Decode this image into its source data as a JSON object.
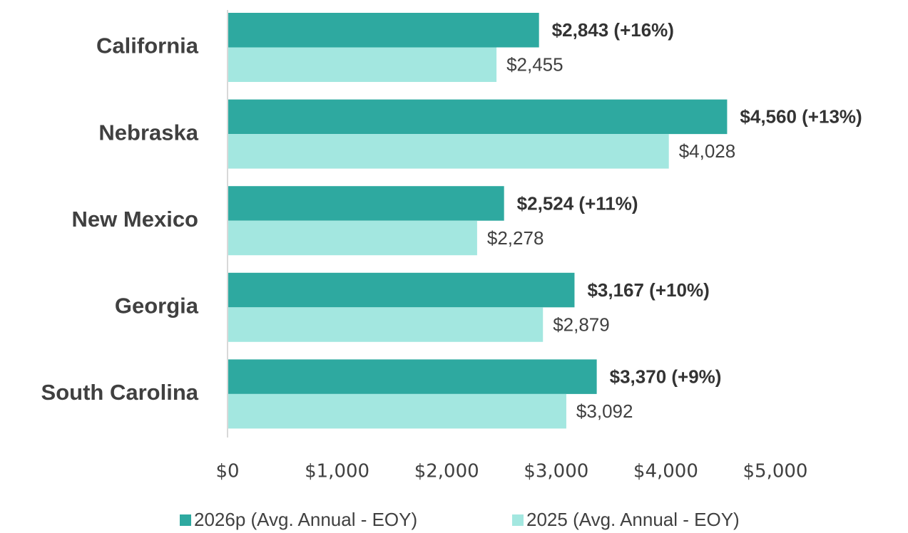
{
  "chart_data": {
    "type": "hbar",
    "categories": [
      "California",
      "Nebraska",
      "New Mexico",
      "Georgia",
      "South Carolina"
    ],
    "series": [
      {
        "name": "2026p (Avg. Annual - EOY)",
        "color": "#2ea9a0",
        "values": [
          2843,
          4560,
          2524,
          3167,
          3370
        ],
        "value_labels": [
          "$2,843 (+16%)",
          "$4,560 (+13%)",
          "$2,524 (+11%)",
          "$3,167 (+10%)",
          "$3,370 (+9%)"
        ]
      },
      {
        "name": "2025 (Avg. Annual - EOY)",
        "color": "#a3e7e0",
        "values": [
          2455,
          4028,
          2278,
          2879,
          3092
        ],
        "value_labels": [
          "$2,455",
          "$4,028",
          "$2,278",
          "$2,879",
          "$3,092"
        ]
      }
    ],
    "xlim": [
      0,
      5000
    ],
    "xticks": [
      {
        "value": 0,
        "label": "$0"
      },
      {
        "value": 1000,
        "label": "$1,000"
      },
      {
        "value": 2000,
        "label": "$2,000"
      },
      {
        "value": 3000,
        "label": "$3,000"
      },
      {
        "value": 4000,
        "label": "$4,000"
      },
      {
        "value": 5000,
        "label": "$5,000"
      }
    ],
    "grid": false,
    "legend": "bottom"
  }
}
